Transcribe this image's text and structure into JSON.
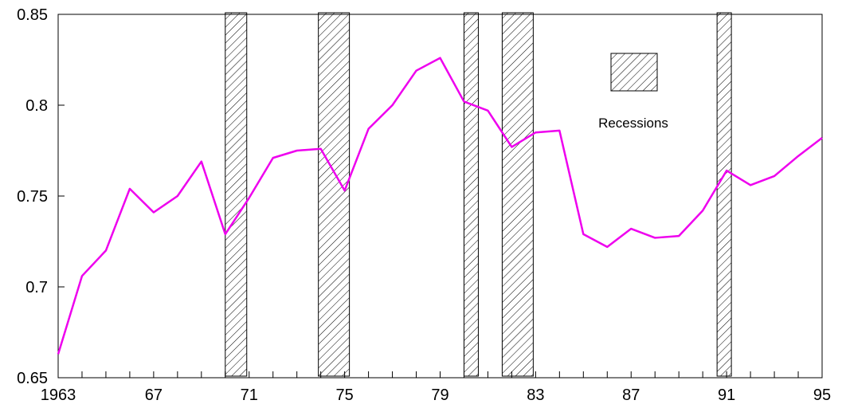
{
  "chart_data": {
    "type": "line",
    "title": "",
    "xlabel": "",
    "ylabel": "",
    "xlim": [
      1963,
      1995
    ],
    "ylim": [
      0.65,
      0.85
    ],
    "grid": false,
    "x_tick_labels": [
      "1963",
      "67",
      "71",
      "75",
      "79",
      "83",
      "87",
      "91",
      "95"
    ],
    "y_tick_labels": [
      "0.65",
      "0.7",
      "0.75",
      "0.8",
      "0.85"
    ],
    "series": [
      {
        "color": "#ee00ee",
        "x": [
          1963,
          1964,
          1965,
          1966,
          1967,
          1968,
          1969,
          1970,
          1971,
          1972,
          1973,
          1974,
          1975,
          1976,
          1977,
          1978,
          1979,
          1980,
          1981,
          1982,
          1983,
          1984,
          1985,
          1986,
          1987,
          1988,
          1989,
          1990,
          1991,
          1992,
          1993,
          1994,
          1995
        ],
        "y": [
          0.663,
          0.706,
          0.72,
          0.754,
          0.741,
          0.75,
          0.769,
          0.729,
          0.749,
          0.771,
          0.775,
          0.776,
          0.753,
          0.787,
          0.8,
          0.819,
          0.826,
          0.802,
          0.797,
          0.777,
          0.785,
          0.786,
          0.729,
          0.722,
          0.732,
          0.727,
          0.728,
          0.742,
          0.764,
          0.756,
          0.761,
          0.772,
          0.782
        ]
      }
    ],
    "recession_bands": [
      {
        "start": 1970.0,
        "end": 1970.9
      },
      {
        "start": 1973.9,
        "end": 1975.2
      },
      {
        "start": 1980.0,
        "end": 1980.6
      },
      {
        "start": 1981.6,
        "end": 1982.9
      },
      {
        "start": 1990.6,
        "end": 1991.2
      }
    ],
    "legend": {
      "label": "Recessions",
      "placement": "top-right"
    }
  }
}
